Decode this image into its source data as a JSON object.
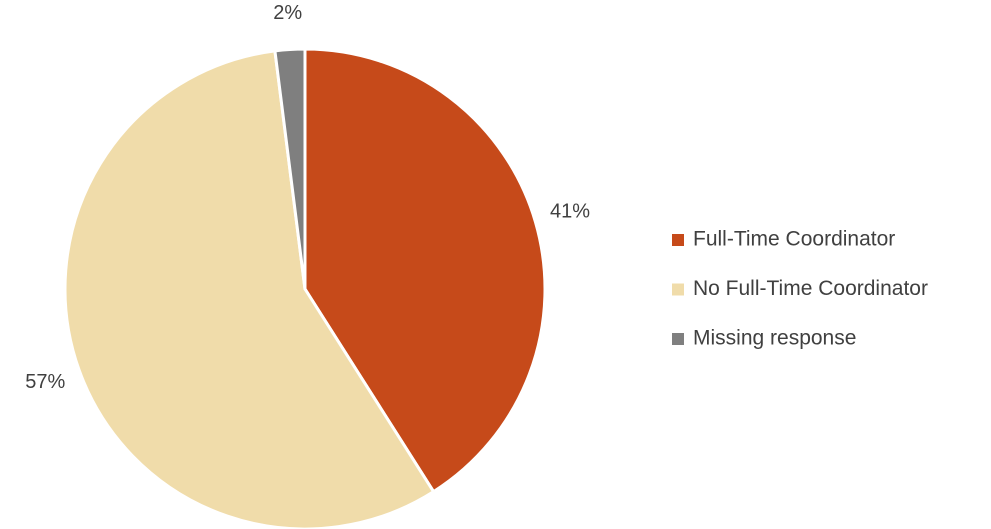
{
  "chart_data": {
    "type": "pie",
    "categories": [
      "Full-Time Coordinator",
      "No Full-Time Coordinator",
      "Missing response"
    ],
    "values": [
      41,
      57,
      2
    ],
    "value_labels": [
      "41%",
      "57%",
      "2%"
    ],
    "colors": [
      "#c64a1a",
      "#f0dcaa",
      "#7f7f7f"
    ],
    "legend": "right"
  }
}
